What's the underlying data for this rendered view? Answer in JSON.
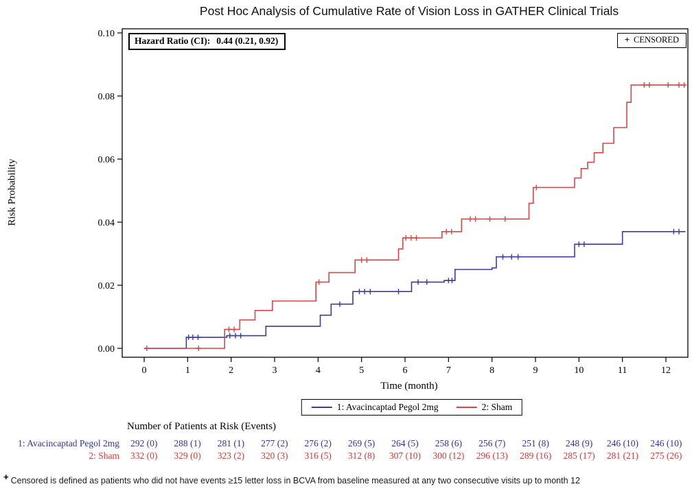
{
  "title": "Post Hoc Analysis of Cumulative Rate of Vision Loss in GATHER Clinical Trials",
  "annotations": {
    "hazard_ratio_label": "Hazard Ratio (CI):",
    "hazard_ratio_value": "0.44 (0.21, 0.92)",
    "censored_marker": "+",
    "censored_label": "CENSORED"
  },
  "chart_data": {
    "type": "line",
    "subtype": "kaplan-meier-step",
    "title": "Post Hoc Analysis of Cumulative Rate of Vision Loss in GATHER Clinical Trials",
    "xlabel": "Time (month)",
    "ylabel": "Risk Probability",
    "xlim": [
      0,
      12.5
    ],
    "ylim": [
      0,
      0.1
    ],
    "xticks": [
      0,
      1,
      2,
      3,
      4,
      5,
      6,
      7,
      8,
      9,
      10,
      11,
      12
    ],
    "yticks": [
      0.0,
      0.02,
      0.04,
      0.06,
      0.08,
      0.1
    ],
    "grid": false,
    "legend_position": "bottom",
    "hazard_ratio": "0.44 (0.21, 0.92)",
    "series": [
      {
        "id": "treatment",
        "name": "1: Avacincaptad Pegol 2mg",
        "color": "#3b3b9e",
        "end_x": 12.45,
        "steps": [
          [
            0,
            0
          ],
          [
            0.97,
            0.0035
          ],
          [
            1.9,
            0.004
          ],
          [
            2.8,
            0.007
          ],
          [
            4.05,
            0.0105
          ],
          [
            4.3,
            0.014
          ],
          [
            4.8,
            0.018
          ],
          [
            6.15,
            0.021
          ],
          [
            6.9,
            0.0215
          ],
          [
            7.15,
            0.025
          ],
          [
            8.0,
            0.0255
          ],
          [
            8.1,
            0.029
          ],
          [
            9.9,
            0.033
          ],
          [
            11.0,
            0.037
          ]
        ],
        "censors": [
          [
            1.02,
            0.0035
          ],
          [
            1.12,
            0.0035
          ],
          [
            1.24,
            0.0035
          ],
          [
            1.97,
            0.004
          ],
          [
            2.1,
            0.004
          ],
          [
            2.22,
            0.004
          ],
          [
            4.5,
            0.014
          ],
          [
            4.95,
            0.018
          ],
          [
            5.07,
            0.018
          ],
          [
            5.2,
            0.018
          ],
          [
            5.85,
            0.018
          ],
          [
            6.3,
            0.021
          ],
          [
            6.5,
            0.021
          ],
          [
            7.0,
            0.0215
          ],
          [
            7.08,
            0.0215
          ],
          [
            8.25,
            0.029
          ],
          [
            8.45,
            0.029
          ],
          [
            8.6,
            0.029
          ],
          [
            10.0,
            0.033
          ],
          [
            10.12,
            0.033
          ],
          [
            12.18,
            0.037
          ],
          [
            12.3,
            0.037
          ]
        ]
      },
      {
        "id": "sham",
        "name": "2: Sham",
        "color": "#dd4444",
        "end_x": 12.45,
        "steps": [
          [
            0,
            0
          ],
          [
            1.85,
            0.006
          ],
          [
            2.2,
            0.009
          ],
          [
            2.55,
            0.012
          ],
          [
            2.95,
            0.015
          ],
          [
            3.95,
            0.021
          ],
          [
            4.25,
            0.024
          ],
          [
            4.85,
            0.028
          ],
          [
            5.85,
            0.0315
          ],
          [
            5.95,
            0.035
          ],
          [
            6.85,
            0.037
          ],
          [
            7.3,
            0.041
          ],
          [
            8.85,
            0.046
          ],
          [
            8.95,
            0.051
          ],
          [
            9.9,
            0.054
          ],
          [
            10.05,
            0.057
          ],
          [
            10.2,
            0.059
          ],
          [
            10.35,
            0.062
          ],
          [
            10.55,
            0.065
          ],
          [
            10.8,
            0.07
          ],
          [
            11.1,
            0.078
          ],
          [
            11.2,
            0.0835
          ]
        ],
        "censors": [
          [
            0.06,
            0
          ],
          [
            1.25,
            0
          ],
          [
            1.95,
            0.006
          ],
          [
            2.07,
            0.006
          ],
          [
            4.02,
            0.021
          ],
          [
            5.0,
            0.028
          ],
          [
            5.12,
            0.028
          ],
          [
            6.02,
            0.035
          ],
          [
            6.14,
            0.035
          ],
          [
            6.26,
            0.035
          ],
          [
            6.95,
            0.037
          ],
          [
            7.07,
            0.037
          ],
          [
            7.5,
            0.041
          ],
          [
            7.62,
            0.041
          ],
          [
            7.95,
            0.041
          ],
          [
            8.3,
            0.041
          ],
          [
            9.02,
            0.051
          ],
          [
            11.5,
            0.0835
          ],
          [
            11.62,
            0.0835
          ],
          [
            12.05,
            0.0835
          ],
          [
            12.3,
            0.0835
          ],
          [
            12.42,
            0.0835
          ]
        ]
      }
    ]
  },
  "legend": {
    "items": [
      {
        "label": "1: Avacincaptad Pegol 2mg",
        "color": "#3b3b9e"
      },
      {
        "label": "2: Sham",
        "color": "#dd4444"
      }
    ]
  },
  "risk_table": {
    "header": "Number of Patients at Risk (Events)",
    "rows": [
      {
        "label": "1: Avacincaptad Pegol 2mg",
        "color": "#3232a0",
        "values": [
          "292 (0)",
          "288 (1)",
          "281 (1)",
          "277 (2)",
          "276 (2)",
          "269 (5)",
          "264 (5)",
          "258 (6)",
          "256 (7)",
          "251 (8)",
          "248 (9)",
          "246 (10)",
          "246 (10)"
        ]
      },
      {
        "label": "2: Sham",
        "color": "#d23a3a",
        "values": [
          "332 (0)",
          "329 (0)",
          "323 (2)",
          "320 (3)",
          "316 (5)",
          "312 (8)",
          "307 (10)",
          "300 (12)",
          "296 (13)",
          "289 (16)",
          "285 (17)",
          "281 (21)",
          "275 (26)"
        ]
      }
    ]
  },
  "footnote": {
    "marker": "+",
    "text": "Censored is defined as patients who did not have events ≥15 letter loss in BCVA from baseline measured at any two consecutive visits up to month 12"
  }
}
